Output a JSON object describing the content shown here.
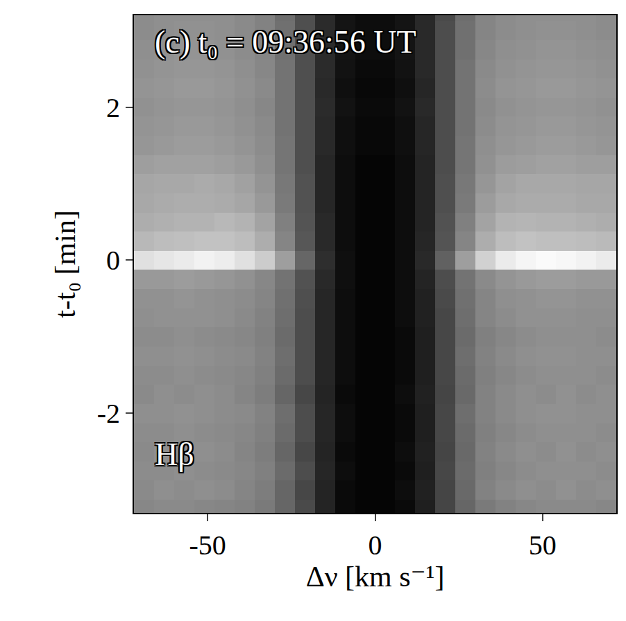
{
  "chart_data": {
    "type": "heatmap",
    "title": "(c) t₀ = 09:36:56 UT",
    "annotations": [
      "Hβ"
    ],
    "x_label": "Δν [km s⁻¹]",
    "y_label": "t-t₀ [min]",
    "color": "gray",
    "zlim": [
      0,
      1
    ],
    "xlim": [
      -72,
      72
    ],
    "ylim": [
      -3.3,
      3.2
    ],
    "xticks": [
      -50,
      0,
      50
    ],
    "yticks": [
      -2,
      0,
      2
    ],
    "grid": false,
    "x": [
      -69,
      -63,
      -57,
      -51,
      -45,
      -39,
      -33,
      -27,
      -21,
      -15,
      -9,
      -3,
      3,
      9,
      15,
      21,
      27,
      33,
      39,
      45,
      51,
      57,
      63,
      69
    ],
    "y": [
      -3.25,
      -3.0,
      -2.75,
      -2.5,
      -2.25,
      -2.0,
      -1.75,
      -1.5,
      -1.25,
      -1.0,
      -0.75,
      -0.5,
      -0.25,
      0.0,
      0.25,
      0.5,
      0.75,
      1.0,
      1.25,
      1.5,
      1.75,
      2.0,
      2.25,
      2.5,
      2.75,
      3.0,
      3.25
    ],
    "cells": [
      [
        0.53,
        0.54,
        0.54,
        0.53,
        0.52,
        0.51,
        0.48,
        0.4,
        0.29,
        0.14,
        0.04,
        0.02,
        0.02,
        0.04,
        0.12,
        0.27,
        0.4,
        0.48,
        0.51,
        0.53,
        0.54,
        0.54,
        0.54,
        0.53
      ],
      [
        0.54,
        0.56,
        0.55,
        0.56,
        0.55,
        0.52,
        0.49,
        0.4,
        0.28,
        0.14,
        0.04,
        0.02,
        0.02,
        0.05,
        0.13,
        0.27,
        0.41,
        0.51,
        0.54,
        0.56,
        0.55,
        0.57,
        0.55,
        0.56
      ],
      [
        0.55,
        0.55,
        0.56,
        0.55,
        0.54,
        0.53,
        0.5,
        0.42,
        0.3,
        0.15,
        0.05,
        0.02,
        0.02,
        0.04,
        0.12,
        0.28,
        0.42,
        0.5,
        0.53,
        0.55,
        0.56,
        0.56,
        0.56,
        0.55
      ],
      [
        0.54,
        0.56,
        0.55,
        0.56,
        0.55,
        0.52,
        0.49,
        0.4,
        0.28,
        0.14,
        0.04,
        0.02,
        0.02,
        0.05,
        0.13,
        0.27,
        0.41,
        0.51,
        0.54,
        0.56,
        0.55,
        0.57,
        0.55,
        0.56
      ],
      [
        0.55,
        0.55,
        0.56,
        0.55,
        0.54,
        0.53,
        0.5,
        0.42,
        0.3,
        0.15,
        0.05,
        0.02,
        0.02,
        0.04,
        0.12,
        0.28,
        0.42,
        0.5,
        0.53,
        0.55,
        0.56,
        0.56,
        0.56,
        0.55
      ],
      [
        0.56,
        0.56,
        0.57,
        0.56,
        0.55,
        0.54,
        0.51,
        0.43,
        0.3,
        0.15,
        0.05,
        0.02,
        0.02,
        0.04,
        0.12,
        0.28,
        0.43,
        0.51,
        0.54,
        0.56,
        0.57,
        0.57,
        0.56,
        0.56
      ],
      [
        0.54,
        0.56,
        0.55,
        0.56,
        0.55,
        0.52,
        0.49,
        0.4,
        0.28,
        0.14,
        0.04,
        0.02,
        0.02,
        0.05,
        0.13,
        0.27,
        0.41,
        0.51,
        0.54,
        0.56,
        0.55,
        0.57,
        0.55,
        0.56
      ],
      [
        0.55,
        0.55,
        0.56,
        0.55,
        0.54,
        0.53,
        0.5,
        0.42,
        0.3,
        0.15,
        0.05,
        0.02,
        0.02,
        0.04,
        0.12,
        0.28,
        0.42,
        0.5,
        0.53,
        0.55,
        0.56,
        0.56,
        0.56,
        0.55
      ],
      [
        0.56,
        0.56,
        0.57,
        0.56,
        0.55,
        0.54,
        0.51,
        0.43,
        0.3,
        0.15,
        0.05,
        0.02,
        0.02,
        0.04,
        0.12,
        0.28,
        0.43,
        0.51,
        0.54,
        0.56,
        0.57,
        0.57,
        0.56,
        0.56
      ],
      [
        0.55,
        0.55,
        0.56,
        0.55,
        0.54,
        0.53,
        0.5,
        0.42,
        0.3,
        0.15,
        0.05,
        0.02,
        0.02,
        0.04,
        0.12,
        0.28,
        0.42,
        0.5,
        0.53,
        0.55,
        0.56,
        0.56,
        0.56,
        0.55
      ],
      [
        0.56,
        0.57,
        0.57,
        0.57,
        0.56,
        0.54,
        0.51,
        0.43,
        0.3,
        0.15,
        0.05,
        0.02,
        0.02,
        0.05,
        0.13,
        0.28,
        0.43,
        0.52,
        0.55,
        0.57,
        0.57,
        0.57,
        0.56,
        0.56
      ],
      [
        0.57,
        0.57,
        0.58,
        0.57,
        0.56,
        0.55,
        0.52,
        0.44,
        0.31,
        0.15,
        0.05,
        0.02,
        0.02,
        0.05,
        0.13,
        0.29,
        0.44,
        0.52,
        0.56,
        0.57,
        0.58,
        0.58,
        0.57,
        0.57
      ],
      [
        0.6,
        0.6,
        0.61,
        0.6,
        0.59,
        0.57,
        0.53,
        0.45,
        0.32,
        0.16,
        0.06,
        0.02,
        0.02,
        0.05,
        0.14,
        0.3,
        0.45,
        0.54,
        0.58,
        0.6,
        0.61,
        0.61,
        0.6,
        0.6
      ],
      [
        0.88,
        0.9,
        0.92,
        0.95,
        0.93,
        0.88,
        0.8,
        0.62,
        0.4,
        0.18,
        0.06,
        0.02,
        0.02,
        0.05,
        0.16,
        0.38,
        0.62,
        0.82,
        0.92,
        0.96,
        0.98,
        0.97,
        0.95,
        0.92
      ],
      [
        0.72,
        0.74,
        0.75,
        0.76,
        0.76,
        0.74,
        0.68,
        0.52,
        0.34,
        0.16,
        0.05,
        0.02,
        0.02,
        0.05,
        0.15,
        0.33,
        0.52,
        0.68,
        0.74,
        0.76,
        0.75,
        0.75,
        0.74,
        0.73
      ],
      [
        0.68,
        0.69,
        0.7,
        0.7,
        0.72,
        0.7,
        0.64,
        0.5,
        0.33,
        0.16,
        0.05,
        0.02,
        0.02,
        0.05,
        0.14,
        0.32,
        0.5,
        0.64,
        0.7,
        0.71,
        0.7,
        0.7,
        0.69,
        0.68
      ],
      [
        0.66,
        0.67,
        0.68,
        0.68,
        0.67,
        0.65,
        0.6,
        0.48,
        0.32,
        0.15,
        0.05,
        0.02,
        0.02,
        0.05,
        0.14,
        0.31,
        0.48,
        0.61,
        0.66,
        0.67,
        0.67,
        0.67,
        0.66,
        0.66
      ],
      [
        0.65,
        0.66,
        0.66,
        0.67,
        0.66,
        0.63,
        0.58,
        0.47,
        0.32,
        0.15,
        0.05,
        0.02,
        0.02,
        0.05,
        0.14,
        0.31,
        0.47,
        0.59,
        0.64,
        0.66,
        0.66,
        0.66,
        0.65,
        0.65
      ],
      [
        0.62,
        0.63,
        0.63,
        0.63,
        0.62,
        0.6,
        0.56,
        0.46,
        0.31,
        0.15,
        0.05,
        0.02,
        0.02,
        0.05,
        0.14,
        0.3,
        0.46,
        0.57,
        0.61,
        0.62,
        0.63,
        0.63,
        0.62,
        0.62
      ],
      [
        0.59,
        0.6,
        0.61,
        0.61,
        0.6,
        0.58,
        0.55,
        0.46,
        0.31,
        0.16,
        0.06,
        0.03,
        0.03,
        0.06,
        0.15,
        0.3,
        0.46,
        0.56,
        0.59,
        0.6,
        0.61,
        0.61,
        0.6,
        0.59
      ],
      [
        0.58,
        0.59,
        0.6,
        0.6,
        0.59,
        0.57,
        0.54,
        0.45,
        0.31,
        0.16,
        0.06,
        0.03,
        0.03,
        0.06,
        0.15,
        0.3,
        0.45,
        0.55,
        0.58,
        0.59,
        0.6,
        0.6,
        0.59,
        0.58
      ],
      [
        0.57,
        0.58,
        0.59,
        0.59,
        0.58,
        0.56,
        0.53,
        0.45,
        0.31,
        0.17,
        0.07,
        0.04,
        0.04,
        0.07,
        0.16,
        0.3,
        0.45,
        0.54,
        0.57,
        0.58,
        0.59,
        0.59,
        0.58,
        0.57
      ],
      [
        0.58,
        0.59,
        0.6,
        0.6,
        0.59,
        0.57,
        0.54,
        0.45,
        0.31,
        0.16,
        0.06,
        0.03,
        0.03,
        0.06,
        0.15,
        0.3,
        0.45,
        0.55,
        0.58,
        0.59,
        0.6,
        0.6,
        0.59,
        0.58
      ],
      [
        0.57,
        0.58,
        0.59,
        0.59,
        0.58,
        0.56,
        0.53,
        0.45,
        0.31,
        0.17,
        0.07,
        0.04,
        0.04,
        0.07,
        0.16,
        0.3,
        0.45,
        0.54,
        0.57,
        0.58,
        0.59,
        0.59,
        0.58,
        0.57
      ],
      [
        0.56,
        0.57,
        0.58,
        0.58,
        0.57,
        0.55,
        0.52,
        0.44,
        0.31,
        0.17,
        0.08,
        0.05,
        0.05,
        0.08,
        0.16,
        0.3,
        0.44,
        0.53,
        0.56,
        0.57,
        0.58,
        0.58,
        0.57,
        0.56
      ],
      [
        0.55,
        0.56,
        0.57,
        0.57,
        0.56,
        0.54,
        0.51,
        0.44,
        0.31,
        0.17,
        0.08,
        0.05,
        0.05,
        0.08,
        0.16,
        0.3,
        0.44,
        0.52,
        0.55,
        0.56,
        0.57,
        0.57,
        0.56,
        0.55
      ],
      [
        0.55,
        0.56,
        0.56,
        0.56,
        0.56,
        0.54,
        0.51,
        0.43,
        0.31,
        0.17,
        0.08,
        0.05,
        0.05,
        0.08,
        0.16,
        0.29,
        0.43,
        0.52,
        0.55,
        0.56,
        0.56,
        0.56,
        0.56,
        0.55
      ]
    ]
  }
}
